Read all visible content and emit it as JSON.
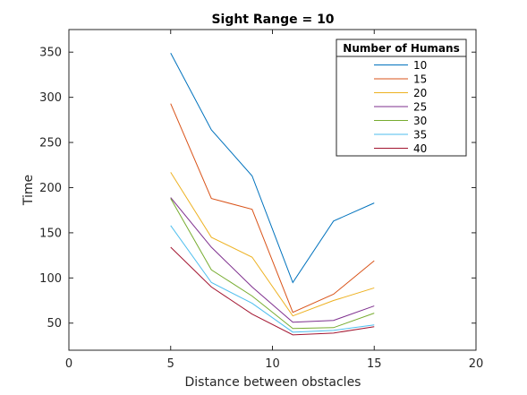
{
  "chart_data": {
    "type": "line",
    "title": "Sight Range = 10",
    "xlabel": "Distance between obstacles",
    "ylabel": "Time",
    "xlim": [
      0,
      20
    ],
    "ylim": [
      20,
      375
    ],
    "xticks": [
      0,
      5,
      10,
      15,
      20
    ],
    "yticks": [
      50,
      100,
      150,
      200,
      250,
      300,
      350
    ],
    "grid": false,
    "legend": {
      "title": "Number of Humans",
      "placement": "top-right"
    },
    "x": [
      5,
      7,
      9,
      11,
      13,
      15
    ],
    "series": [
      {
        "name": "10",
        "color": "#0072BD",
        "values": [
          349,
          264,
          213,
          95,
          163,
          183
        ]
      },
      {
        "name": "15",
        "color": "#D95319",
        "values": [
          293,
          188,
          176,
          62,
          82,
          119
        ]
      },
      {
        "name": "20",
        "color": "#EDB120",
        "values": [
          217,
          145,
          123,
          58,
          75,
          89
        ]
      },
      {
        "name": "25",
        "color": "#7E2F8E",
        "values": [
          189,
          134,
          90,
          51,
          53,
          69
        ]
      },
      {
        "name": "30",
        "color": "#77AC30",
        "values": [
          188,
          109,
          80,
          44,
          45,
          61
        ]
      },
      {
        "name": "35",
        "color": "#4DBEEE",
        "values": [
          158,
          95,
          72,
          40,
          42,
          48
        ]
      },
      {
        "name": "40",
        "color": "#A2142F",
        "values": [
          134,
          90,
          60,
          37,
          39,
          46
        ]
      }
    ]
  }
}
